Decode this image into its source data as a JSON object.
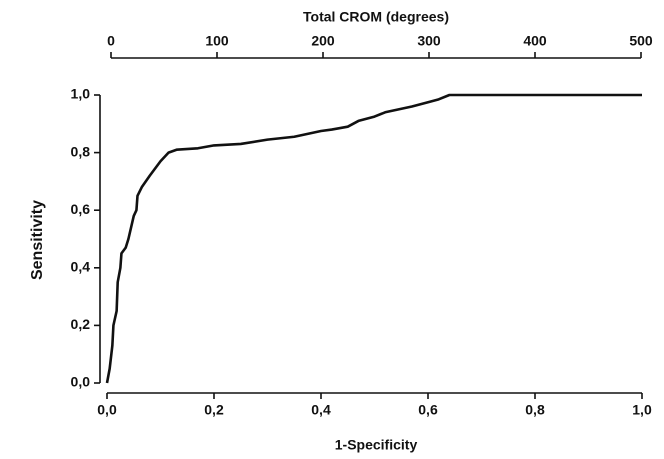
{
  "chart_data": {
    "type": "line",
    "x2label": "Total CROM (degrees)",
    "xlabel": "1-Specificity",
    "ylabel": "Sensitivity",
    "x": [
      0,
      0.005,
      0.01,
      0.012,
      0.018,
      0.02,
      0.025,
      0.027,
      0.035,
      0.04,
      0.05,
      0.055,
      0.057,
      0.065,
      0.08,
      0.1,
      0.115,
      0.13,
      0.17,
      0.2,
      0.25,
      0.3,
      0.35,
      0.4,
      0.42,
      0.45,
      0.47,
      0.5,
      0.52,
      0.57,
      0.6,
      0.62,
      0.64,
      1.0
    ],
    "values": [
      0,
      0.05,
      0.13,
      0.2,
      0.25,
      0.35,
      0.4,
      0.45,
      0.47,
      0.5,
      0.58,
      0.6,
      0.65,
      0.68,
      0.72,
      0.77,
      0.8,
      0.81,
      0.815,
      0.825,
      0.83,
      0.845,
      0.855,
      0.875,
      0.88,
      0.89,
      0.91,
      0.925,
      0.94,
      0.96,
      0.975,
      0.985,
      1.0,
      1.0
    ],
    "color": "#111111",
    "xlim": [
      0,
      1
    ],
    "xticks": [
      {
        "value": 0,
        "label": "0,0"
      },
      {
        "value": 0.2,
        "label": "0,2"
      },
      {
        "value": 0.4,
        "label": "0,4"
      },
      {
        "value": 0.6,
        "label": "0,6"
      },
      {
        "value": 0.8,
        "label": "0,8"
      },
      {
        "value": 1,
        "label": "1,0"
      }
    ],
    "ylim": [
      0,
      1
    ],
    "yticks": [
      {
        "value": 0,
        "label": "0,0"
      },
      {
        "value": 0.2,
        "label": "0,2"
      },
      {
        "value": 0.4,
        "label": "0,4"
      },
      {
        "value": 0.6,
        "label": "0,6"
      },
      {
        "value": 0.8,
        "label": "0,8"
      },
      {
        "value": 1,
        "label": "1,0"
      }
    ],
    "x2lim": [
      0,
      500
    ],
    "x2ticks": [
      0,
      100,
      200,
      300,
      400,
      500
    ]
  }
}
